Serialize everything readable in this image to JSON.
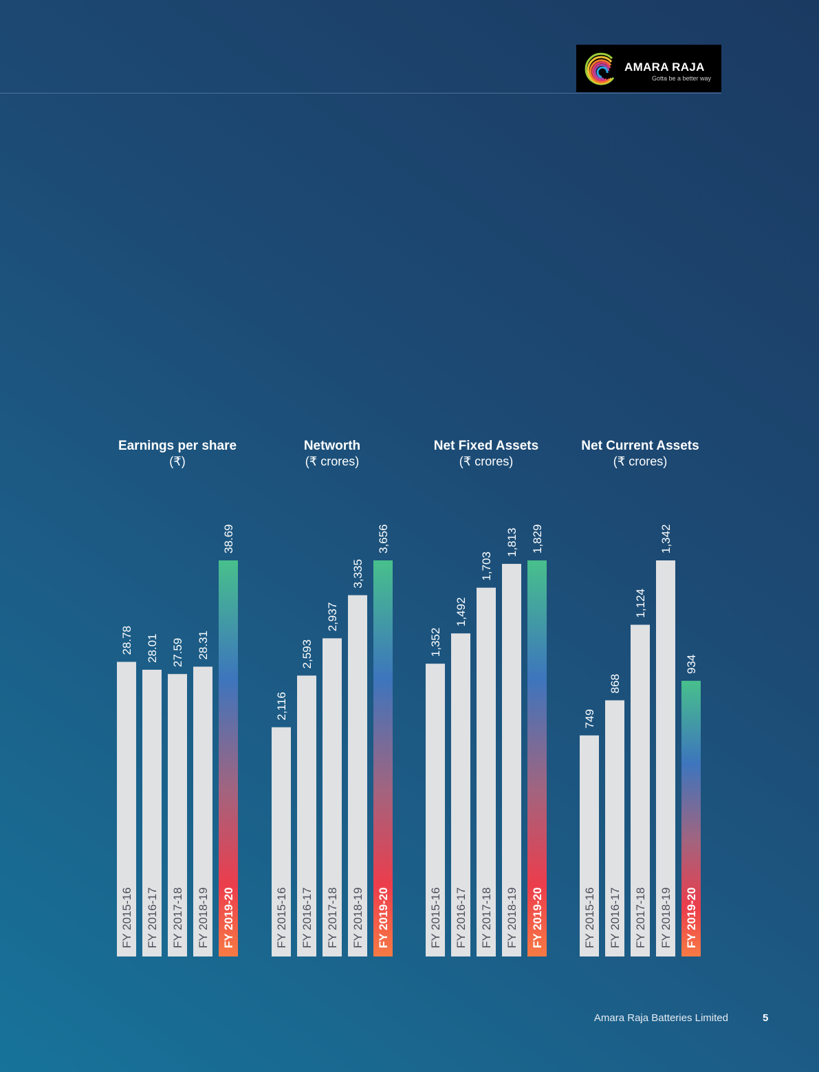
{
  "brand": {
    "name": "AMARA RAJA",
    "tagline": "Gotta be a better way"
  },
  "footer": {
    "company": "Amara Raja Batteries Limited",
    "page_number": "5"
  },
  "colors": {
    "bar_default": "#e0e1e3",
    "highlight_gradient": [
      "#48c08c",
      "#3d75bd",
      "#a2647f",
      "#ec3d4c",
      "#f77a44"
    ],
    "text": "#ffffff"
  },
  "chart_data": [
    {
      "type": "bar",
      "title": "Earnings per share",
      "subtitle": "(₹)",
      "categories": [
        "FY 2015-16",
        "FY 2016-17",
        "FY 2017-18",
        "FY 2018-19",
        "FY 2019-20"
      ],
      "values": [
        28.78,
        28.01,
        27.59,
        28.31,
        38.69
      ],
      "value_labels": [
        "28.78",
        "28.01",
        "27.59",
        "28.31",
        "38.69"
      ],
      "highlight_index": 4,
      "grid": false,
      "legend": "none"
    },
    {
      "type": "bar",
      "title": "Networth",
      "subtitle": "(₹ crores)",
      "categories": [
        "FY 2015-16",
        "FY 2016-17",
        "FY 2017-18",
        "FY 2018-19",
        "FY 2019-20"
      ],
      "values": [
        2116,
        2593,
        2937,
        3335,
        3656
      ],
      "value_labels": [
        "2,116",
        "2,593",
        "2,937",
        "3,335",
        "3,656"
      ],
      "highlight_index": 4,
      "grid": false,
      "legend": "none"
    },
    {
      "type": "bar",
      "title": "Net Fixed Assets",
      "subtitle": "(₹ crores)",
      "categories": [
        "FY 2015-16",
        "FY 2016-17",
        "FY 2017-18",
        "FY 2018-19",
        "FY 2019-20"
      ],
      "values": [
        1352,
        1492,
        1703,
        1813,
        1829
      ],
      "value_labels": [
        "1,352",
        "1,492",
        "1,703",
        "1,813",
        "1,829"
      ],
      "highlight_index": 4,
      "grid": false,
      "legend": "none"
    },
    {
      "type": "bar",
      "title": "Net Current Assets",
      "subtitle": "(₹ crores)",
      "categories": [
        "FY 2015-16",
        "FY 2016-17",
        "FY 2017-18",
        "FY 2018-19",
        "FY 2019-20"
      ],
      "values": [
        749,
        868,
        1124,
        1342,
        934
      ],
      "value_labels": [
        "749",
        "868",
        "1,124",
        "1,342",
        "934"
      ],
      "highlight_index": 4,
      "grid": false,
      "legend": "none"
    }
  ]
}
